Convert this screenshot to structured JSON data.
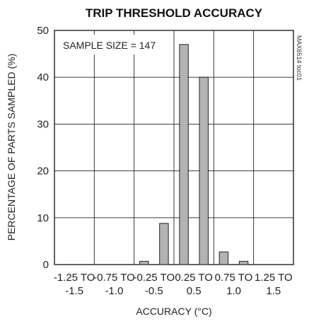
{
  "chart_data": {
    "type": "bar",
    "title": "TRIP THRESHOLD ACCURACY",
    "xlabel": "ACCURACY (°C)",
    "ylabel": "PERCENTAGE OF PARTS SAMPLED (%)",
    "ylim": [
      0,
      50
    ],
    "yticks": [
      "0",
      "10",
      "20",
      "30",
      "40",
      "50"
    ],
    "xtick_labels": [
      {
        "top": "-1.25 TO",
        "bottom": "-1.5"
      },
      {
        "top": "-0.75 TO",
        "bottom": "-1.0"
      },
      {
        "top": "-0.25 TO",
        "bottom": "-0.5"
      },
      {
        "top": "0.25 TO",
        "bottom": "0.5"
      },
      {
        "top": "0.75 TO",
        "bottom": "1.0"
      },
      {
        "top": "1.25 TO",
        "bottom": "1.5"
      }
    ],
    "bins": [
      {
        "start": -1.5,
        "end": -1.25,
        "value": 0
      },
      {
        "start": -1.25,
        "end": -1.0,
        "value": 0
      },
      {
        "start": -1.0,
        "end": -0.75,
        "value": 0
      },
      {
        "start": -0.75,
        "end": -0.5,
        "value": 0
      },
      {
        "start": -0.5,
        "end": -0.25,
        "value": 0.7
      },
      {
        "start": -0.25,
        "end": 0,
        "value": 8.8
      },
      {
        "start": 0,
        "end": 0.25,
        "value": 47
      },
      {
        "start": 0.25,
        "end": 0.5,
        "value": 40
      },
      {
        "start": 0.5,
        "end": 0.75,
        "value": 2.7
      },
      {
        "start": 0.75,
        "end": 1.0,
        "value": 0.7
      },
      {
        "start": 1.0,
        "end": 1.25,
        "value": 0
      },
      {
        "start": 1.25,
        "end": 1.5,
        "value": 0
      }
    ],
    "annotation": "SAMPLE SIZE = 147",
    "grid": true,
    "bar_color": "#b3b3b3"
  },
  "watermark": "MAX6514 toc01"
}
